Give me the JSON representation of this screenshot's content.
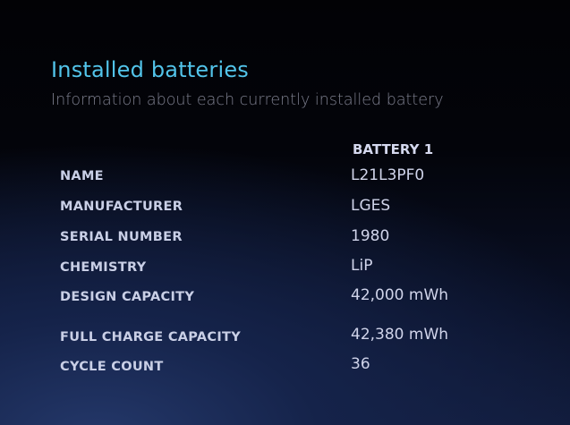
{
  "header": {
    "title": "Installed batteries",
    "subtitle": "Information about each currently installed battery"
  },
  "table": {
    "column_header": "BATTERY 1",
    "rows": [
      {
        "label": "NAME",
        "value": "L21L3PF0"
      },
      {
        "label": "MANUFACTURER",
        "value": "LGES"
      },
      {
        "label": "SERIAL NUMBER",
        "value": "1980"
      },
      {
        "label": "CHEMISTRY",
        "value": "LiP"
      },
      {
        "label": "DESIGN CAPACITY",
        "value": "42,000 mWh"
      },
      {
        "label": "FULL CHARGE CAPACITY",
        "value": "42,380 mWh"
      },
      {
        "label": "CYCLE COUNT",
        "value": "36"
      }
    ]
  },
  "colors": {
    "title": "#52c4ea",
    "subtitle": "#7d7f8e",
    "text": "#c9cfe6"
  }
}
